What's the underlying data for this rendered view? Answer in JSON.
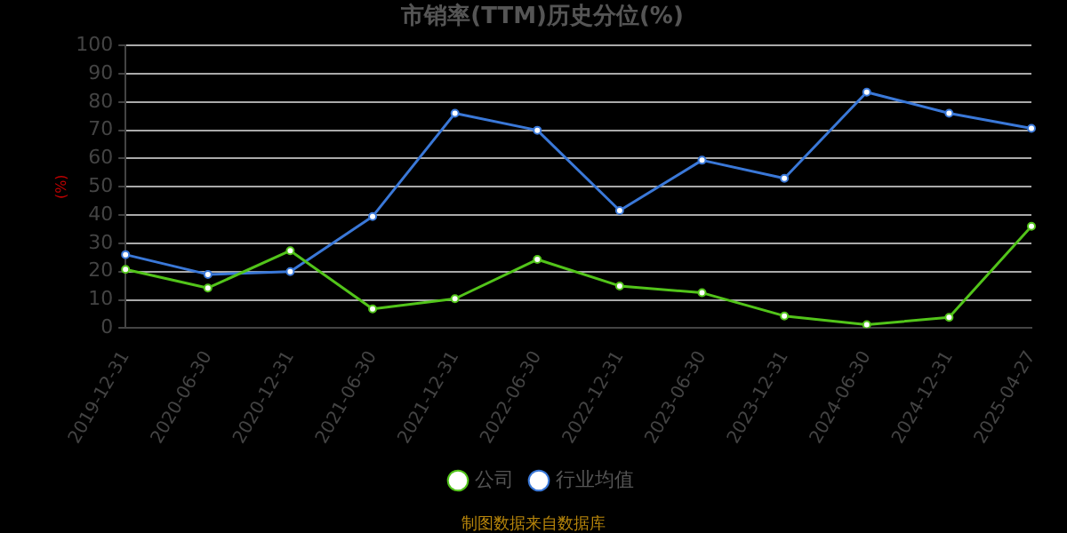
{
  "chart_data": {
    "type": "line",
    "title": "市销率(TTM)历史分位(%)",
    "ylabel": "(%)",
    "categories": [
      "2019-12-31",
      "2020-06-30",
      "2020-12-31",
      "2021-06-30",
      "2021-12-31",
      "2022-06-30",
      "2022-12-31",
      "2023-06-30",
      "2023-12-31",
      "2024-06-30",
      "2024-12-31",
      "2025-04-27"
    ],
    "series": [
      {
        "name": "公司",
        "color": "#52c41a",
        "values": [
          20.8,
          14.2,
          27.4,
          6.8,
          10.4,
          24.3,
          14.9,
          12.5,
          4.3,
          1.2,
          3.8,
          36
        ]
      },
      {
        "name": "行业均值",
        "color": "#3a78d8",
        "values": [
          26,
          19,
          20,
          39.5,
          76,
          70,
          41.6,
          59.4,
          53,
          83.5,
          76,
          70.7
        ]
      }
    ],
    "ylim": [
      0,
      100
    ],
    "yticks": [
      0,
      10,
      20,
      30,
      40,
      50,
      60,
      70,
      80,
      90,
      100
    ],
    "grid": "y",
    "legend": "bottom",
    "marker": "circle",
    "line_style": "solid",
    "annotations": [
      "制图数据来自数据库"
    ]
  }
}
